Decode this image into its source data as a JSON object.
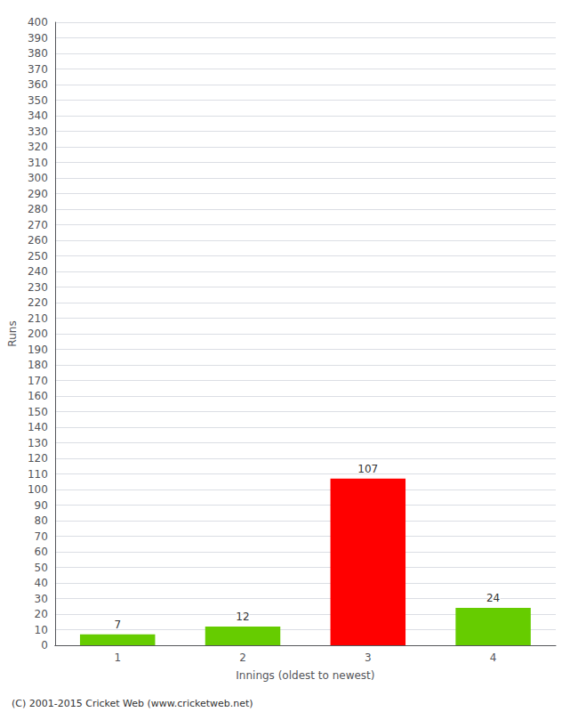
{
  "chart_data": {
    "type": "bar",
    "categories": [
      "1",
      "2",
      "3",
      "4"
    ],
    "values": [
      7,
      12,
      107,
      24
    ],
    "colors": [
      "#66cc00",
      "#66cc00",
      "#ff0000",
      "#66cc00"
    ],
    "xlabel": "Innings (oldest to newest)",
    "ylabel": "Runs",
    "ylim": [
      0,
      400
    ],
    "yticks": [
      0,
      10,
      20,
      30,
      40,
      50,
      60,
      70,
      80,
      90,
      100,
      110,
      120,
      130,
      140,
      150,
      160,
      170,
      180,
      190,
      200,
      210,
      220,
      230,
      240,
      250,
      260,
      270,
      280,
      290,
      300,
      310,
      320,
      330,
      340,
      350,
      360,
      370,
      380,
      390,
      400
    ],
    "grid": true,
    "data_labels": true,
    "annotation": "(C) 2001-2015 Cricket Web (www.cricketweb.net)"
  }
}
